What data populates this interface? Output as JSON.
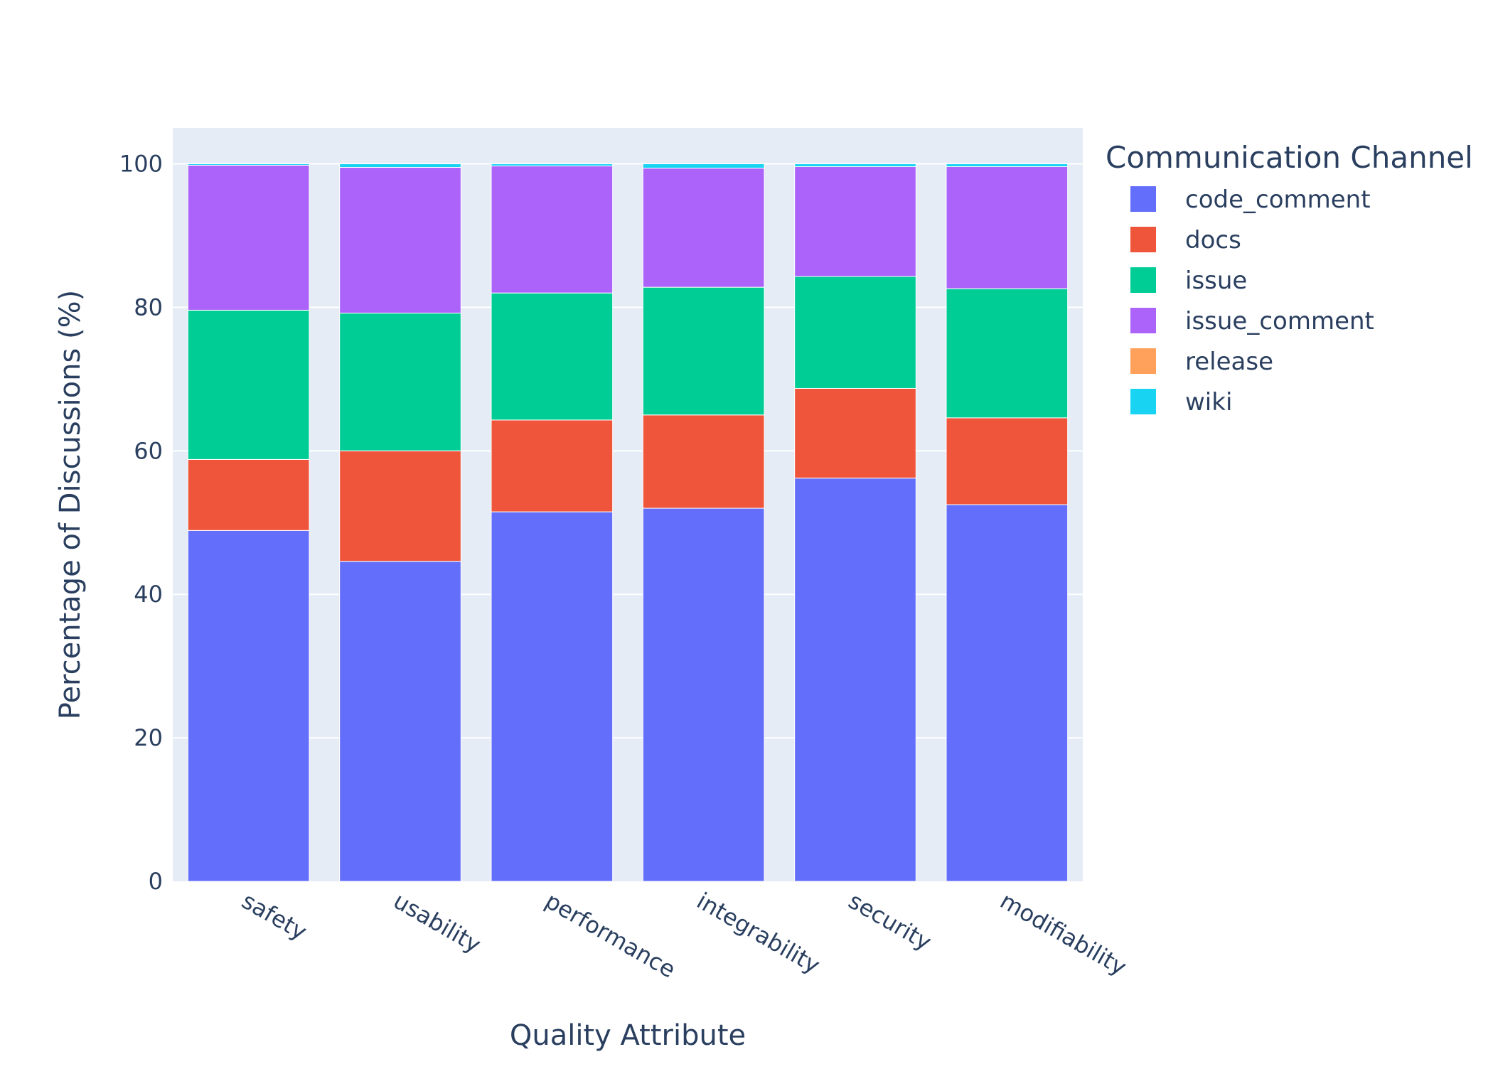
{
  "chart_data": {
    "type": "bar",
    "barmode": "stack",
    "categories": [
      "safety",
      "usability",
      "performance",
      "integrability",
      "security",
      "modifiability"
    ],
    "xlabel": "Quality Attribute",
    "ylabel": "Percentage of Discussions (%)",
    "ylim": [
      0,
      105
    ],
    "yticks": [
      0,
      20,
      40,
      60,
      80,
      100
    ],
    "grid": true,
    "legend_title": "Communication Channel",
    "legend_position": "right",
    "series": [
      {
        "name": "code_comment",
        "color": "#636efa",
        "values": [
          48.9,
          44.6,
          51.5,
          52.0,
          56.2,
          52.5
        ]
      },
      {
        "name": "docs",
        "color": "#ef553b",
        "values": [
          9.9,
          15.4,
          12.8,
          13.0,
          12.5,
          12.1
        ]
      },
      {
        "name": "issue",
        "color": "#00cc96",
        "values": [
          20.8,
          19.2,
          17.7,
          17.8,
          15.6,
          18.0
        ]
      },
      {
        "name": "issue_comment",
        "color": "#ab63fa",
        "values": [
          20.2,
          20.3,
          17.7,
          16.6,
          15.3,
          17.0
        ]
      },
      {
        "name": "release",
        "color": "#ffa15a",
        "values": [
          0.0,
          0.0,
          0.0,
          0.0,
          0.0,
          0.0
        ]
      },
      {
        "name": "wiki",
        "color": "#19d3f3",
        "values": [
          0.2,
          0.5,
          0.3,
          0.6,
          0.4,
          0.4
        ]
      }
    ]
  }
}
